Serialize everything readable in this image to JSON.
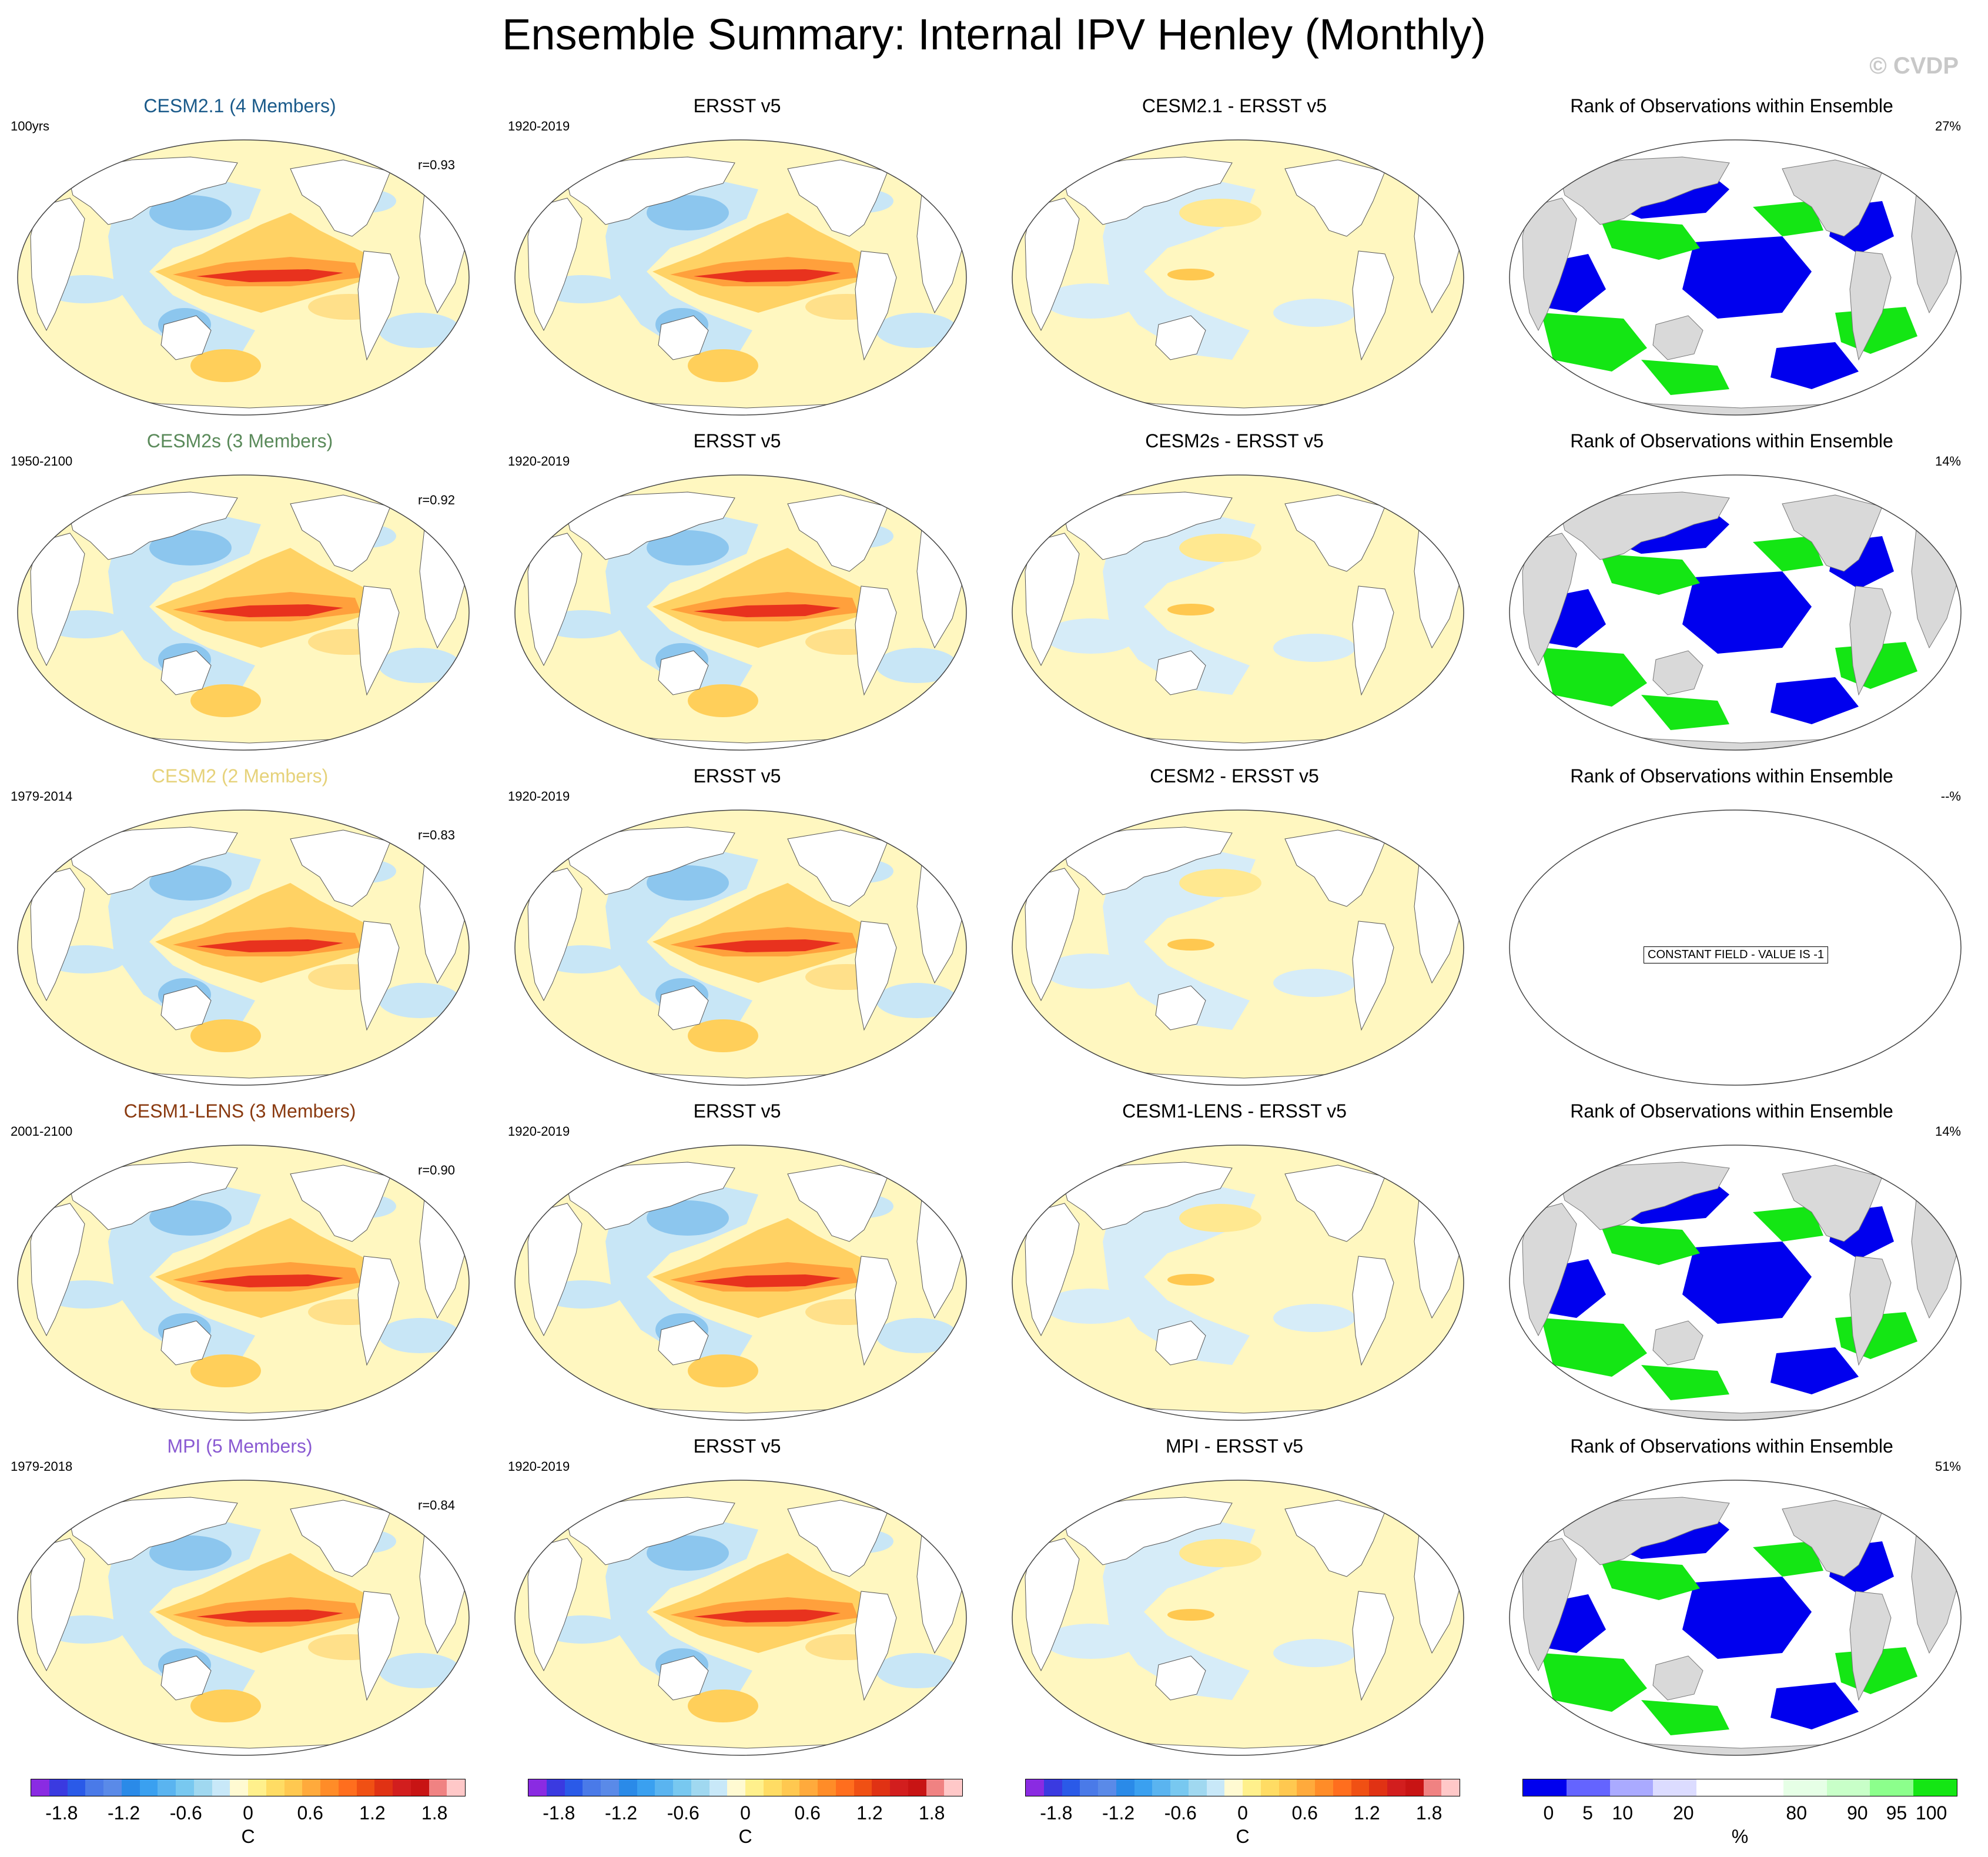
{
  "title": "Ensemble Summary: Internal IPV Henley (Monthly)",
  "copyright": "© CVDP",
  "rows": [
    {
      "model": {
        "title": "CESM2.1 (4 Members)",
        "title_color": "#1a5a8a",
        "period": "100yrs",
        "r": "r=0.93"
      },
      "obs": {
        "title": "ERSST v5",
        "period": "1920-2019"
      },
      "diff": {
        "title": "CESM2.1 - ERSST v5"
      },
      "rank": {
        "title": "Rank of Observations within Ensemble",
        "pct": "27%",
        "constant": ""
      }
    },
    {
      "model": {
        "title": "CESM2s (3 Members)",
        "title_color": "#5a8a5a",
        "period": "1950-2100",
        "r": "r=0.92"
      },
      "obs": {
        "title": "ERSST v5",
        "period": "1920-2019"
      },
      "diff": {
        "title": "CESM2s - ERSST v5"
      },
      "rank": {
        "title": "Rank of Observations within Ensemble",
        "pct": "14%",
        "constant": ""
      }
    },
    {
      "model": {
        "title": "CESM2 (2 Members)",
        "title_color": "#e6d27a",
        "period": "1979-2014",
        "r": "r=0.83"
      },
      "obs": {
        "title": "ERSST v5",
        "period": "1920-2019"
      },
      "diff": {
        "title": "CESM2 - ERSST v5"
      },
      "rank": {
        "title": "Rank of Observations within Ensemble",
        "pct": "--%",
        "constant": "CONSTANT FIELD - VALUE IS -1"
      }
    },
    {
      "model": {
        "title": "CESM1-LENS (3 Members)",
        "title_color": "#8a3a10",
        "period": "2001-2100",
        "r": "r=0.90"
      },
      "obs": {
        "title": "ERSST v5",
        "period": "1920-2019"
      },
      "diff": {
        "title": "CESM1-LENS - ERSST v5"
      },
      "rank": {
        "title": "Rank of Observations within Ensemble",
        "pct": "14%",
        "constant": ""
      }
    },
    {
      "model": {
        "title": "MPI (5 Members)",
        "title_color": "#8a5ad2",
        "period": "1979-2018",
        "r": "r=0.84"
      },
      "obs": {
        "title": "ERSST v5",
        "period": "1920-2019"
      },
      "diff": {
        "title": "MPI - ERSST v5"
      },
      "rank": {
        "title": "Rank of Observations within Ensemble",
        "pct": "51%",
        "constant": ""
      }
    }
  ],
  "colorbars": {
    "sst": {
      "colors": [
        "#8a2be2",
        "#3a3ae0",
        "#2a5ae8",
        "#4a7ae8",
        "#5a8ae8",
        "#2a8ae8",
        "#3aa0f0",
        "#5ab4f0",
        "#78c8f0",
        "#a0d8f0",
        "#c8e8f8",
        "#fffad2",
        "#fff08c",
        "#ffdc64",
        "#ffc850",
        "#ffaa3c",
        "#ff8c28",
        "#ff6e1e",
        "#f05014",
        "#e03214",
        "#d21e1e",
        "#c81414",
        "#f08282",
        "#ffc8c8"
      ],
      "ticks": [
        "-1.8",
        "-1.2",
        "-0.6",
        "0",
        "0.6",
        "1.2",
        "1.8"
      ],
      "units": "C"
    },
    "rank": {
      "colors": [
        "#0000ee",
        "#6464ff",
        "#aaaaff",
        "#dcdcff",
        "#ffffff",
        "#ffffff",
        "#e6ffe6",
        "#c8ffc8",
        "#8cff8c",
        "#14e614"
      ],
      "ticks": [
        "0",
        "5",
        "10",
        "20",
        "80",
        "90",
        "95",
        "100"
      ],
      "units": "%"
    }
  }
}
